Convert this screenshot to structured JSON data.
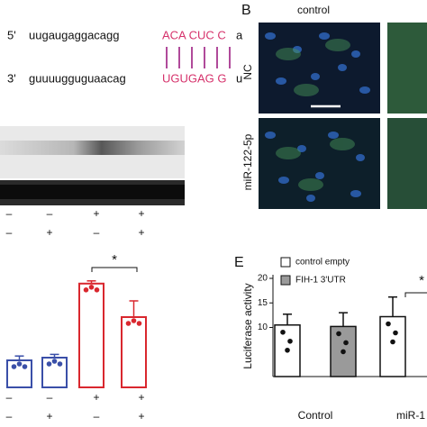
{
  "panel_a": {
    "top": {
      "end": "5'",
      "seq": "uugaugaggacagg",
      "pair": "ACA CUC C",
      "tail": "a"
    },
    "bottom": {
      "end": "3'",
      "seq": "guuuugguguaacag",
      "pair": "UGUGAG G",
      "tail": "u"
    }
  },
  "panel_b": {
    "label": "B",
    "column": "control",
    "rows": [
      "NC",
      "miR-122-5p"
    ]
  },
  "blot_signs": [
    [
      "–",
      "–",
      "+",
      "+"
    ],
    [
      "–",
      "+",
      "–",
      "+"
    ]
  ],
  "panel_d": {
    "values": [
      0.5,
      0.55,
      1.92,
      1.3
    ],
    "errors": [
      0.08,
      0.06,
      0.05,
      0.3
    ],
    "colors": [
      "#3a4fa8",
      "#3a4fa8",
      "#d9272e",
      "#d9272e"
    ],
    "signs": [
      [
        "–",
        "–",
        "+",
        "+"
      ],
      [
        "–",
        "+",
        "–",
        "+"
      ]
    ],
    "significance": "*"
  },
  "panel_e": {
    "label": "E",
    "ylabel": "Luciferase activity",
    "ylim": [
      0,
      20
    ],
    "yticks": [
      10,
      15,
      20
    ],
    "categories": [
      "Control",
      "miR-1"
    ],
    "series": [
      {
        "name": "control empty",
        "color": "#ffffff",
        "values": [
          10.5,
          12.2
        ],
        "errors": [
          2.2,
          4.0
        ]
      },
      {
        "name": "FIH-1 3'UTR",
        "color": "#9a9a9a",
        "values": [
          10.2,
          null
        ],
        "errors": [
          2.8,
          null
        ]
      }
    ],
    "significance": "*"
  }
}
